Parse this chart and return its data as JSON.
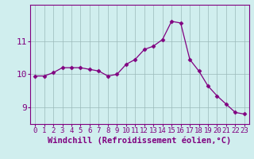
{
  "x": [
    0,
    1,
    2,
    3,
    4,
    5,
    6,
    7,
    8,
    9,
    10,
    11,
    12,
    13,
    14,
    15,
    16,
    17,
    18,
    19,
    20,
    21,
    22,
    23
  ],
  "y": [
    9.95,
    9.95,
    10.05,
    10.2,
    10.2,
    10.2,
    10.15,
    10.1,
    9.95,
    10.0,
    10.3,
    10.45,
    10.75,
    10.85,
    11.05,
    11.6,
    11.55,
    10.45,
    10.1,
    9.65,
    9.35,
    9.1,
    8.85,
    8.8
  ],
  "line_color": "#800080",
  "marker": "D",
  "marker_size": 2.5,
  "bg_color": "#d0eeee",
  "grid_color": "#9ababa",
  "xlabel": "Windchill (Refroidissement éolien,°C)",
  "ylabel": "",
  "ylim": [
    8.5,
    12.1
  ],
  "xlim": [
    -0.5,
    23.5
  ],
  "yticks": [
    9,
    10,
    11
  ],
  "xtick_labels": [
    "0",
    "1",
    "2",
    "3",
    "4",
    "5",
    "6",
    "7",
    "8",
    "9",
    "10",
    "11",
    "12",
    "13",
    "14",
    "15",
    "16",
    "17",
    "18",
    "19",
    "20",
    "21",
    "22",
    "23"
  ],
  "label_color": "#800080",
  "tick_color": "#800080",
  "spine_color": "#800080",
  "font_size_xlabel": 7.5,
  "font_size_ytick": 8,
  "font_size_xtick": 6.5
}
